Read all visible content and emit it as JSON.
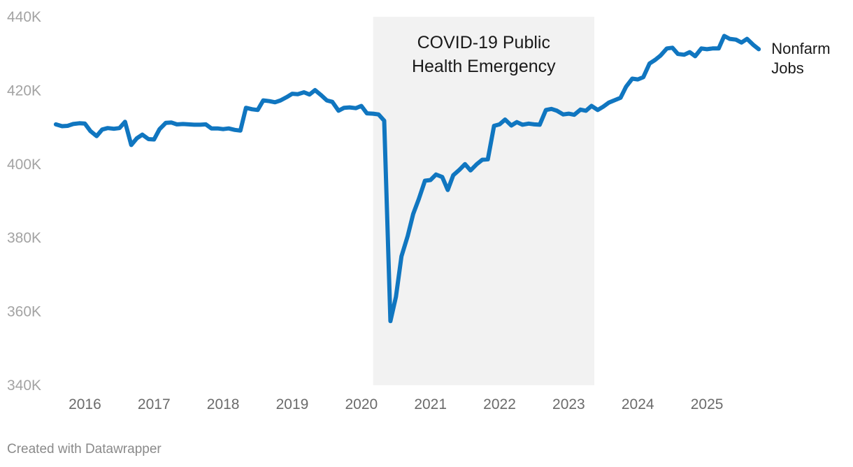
{
  "chart_data": {
    "type": "line",
    "title": "",
    "xlabel": "",
    "ylabel": "",
    "ylim": [
      340000,
      440000
    ],
    "xlim": [
      2015.5,
      2025.95
    ],
    "y_ticks": [
      {
        "value": 340000,
        "label": "340K"
      },
      {
        "value": 360000,
        "label": "360K"
      },
      {
        "value": 380000,
        "label": "380K"
      },
      {
        "value": 400000,
        "label": "400K"
      },
      {
        "value": 420000,
        "label": "420K"
      },
      {
        "value": 440000,
        "label": "440K"
      }
    ],
    "x_ticks": [
      {
        "value": 2016,
        "label": "2016"
      },
      {
        "value": 2017,
        "label": "2017"
      },
      {
        "value": 2018,
        "label": "2018"
      },
      {
        "value": 2019,
        "label": "2019"
      },
      {
        "value": 2020,
        "label": "2020"
      },
      {
        "value": 2021,
        "label": "2021"
      },
      {
        "value": 2022,
        "label": "2022"
      },
      {
        "value": 2023,
        "label": "2023"
      },
      {
        "value": 2024,
        "label": "2024"
      },
      {
        "value": 2025,
        "label": "2025"
      }
    ],
    "shaded_range": {
      "start": 2020.17,
      "end": 2023.37,
      "label_lines": [
        "COVID-19 Public",
        "Health Emergency"
      ]
    },
    "series": [
      {
        "name": "Nonfarm Jobs",
        "label_lines": [
          "Nonfarm",
          "Jobs"
        ],
        "color": "#1076c0",
        "points": [
          [
            2015.58,
            410800
          ],
          [
            2015.67,
            410300
          ],
          [
            2015.75,
            410400
          ],
          [
            2015.83,
            410900
          ],
          [
            2015.92,
            411100
          ],
          [
            2016.0,
            411000
          ],
          [
            2016.08,
            409000
          ],
          [
            2016.17,
            407600
          ],
          [
            2016.25,
            409400
          ],
          [
            2016.33,
            409800
          ],
          [
            2016.42,
            409600
          ],
          [
            2016.5,
            409800
          ],
          [
            2016.58,
            411500
          ],
          [
            2016.67,
            405200
          ],
          [
            2016.75,
            407000
          ],
          [
            2016.83,
            408000
          ],
          [
            2016.92,
            406800
          ],
          [
            2017.0,
            406700
          ],
          [
            2017.08,
            409500
          ],
          [
            2017.17,
            411200
          ],
          [
            2017.25,
            411300
          ],
          [
            2017.33,
            410800
          ],
          [
            2017.42,
            410900
          ],
          [
            2017.5,
            410800
          ],
          [
            2017.58,
            410700
          ],
          [
            2017.67,
            410700
          ],
          [
            2017.75,
            410800
          ],
          [
            2017.83,
            409700
          ],
          [
            2017.92,
            409700
          ],
          [
            2018.0,
            409500
          ],
          [
            2018.08,
            409700
          ],
          [
            2018.17,
            409300
          ],
          [
            2018.25,
            409100
          ],
          [
            2018.33,
            415300
          ],
          [
            2018.42,
            414900
          ],
          [
            2018.5,
            414700
          ],
          [
            2018.58,
            417300
          ],
          [
            2018.67,
            417100
          ],
          [
            2018.75,
            416800
          ],
          [
            2018.83,
            417300
          ],
          [
            2018.92,
            418200
          ],
          [
            2019.0,
            419100
          ],
          [
            2019.08,
            419000
          ],
          [
            2019.17,
            419500
          ],
          [
            2019.25,
            418900
          ],
          [
            2019.33,
            420100
          ],
          [
            2019.42,
            418700
          ],
          [
            2019.5,
            417300
          ],
          [
            2019.58,
            416900
          ],
          [
            2019.67,
            414500
          ],
          [
            2019.75,
            415300
          ],
          [
            2019.83,
            415400
          ],
          [
            2019.92,
            415200
          ],
          [
            2020.0,
            415800
          ],
          [
            2020.08,
            413800
          ],
          [
            2020.17,
            413700
          ],
          [
            2020.25,
            413500
          ],
          [
            2020.33,
            411800
          ],
          [
            2020.42,
            357400
          ],
          [
            2020.5,
            364000
          ],
          [
            2020.58,
            375000
          ],
          [
            2020.67,
            380500
          ],
          [
            2020.75,
            386500
          ],
          [
            2020.83,
            390500
          ],
          [
            2020.92,
            395500
          ],
          [
            2021.0,
            395700
          ],
          [
            2021.08,
            397200
          ],
          [
            2021.17,
            396500
          ],
          [
            2021.25,
            393000
          ],
          [
            2021.33,
            397000
          ],
          [
            2021.42,
            398500
          ],
          [
            2021.5,
            400000
          ],
          [
            2021.58,
            398300
          ],
          [
            2021.67,
            400000
          ],
          [
            2021.75,
            401200
          ],
          [
            2021.83,
            401300
          ],
          [
            2021.92,
            410400
          ],
          [
            2022.0,
            410800
          ],
          [
            2022.08,
            412100
          ],
          [
            2022.17,
            410500
          ],
          [
            2022.25,
            411400
          ],
          [
            2022.33,
            410700
          ],
          [
            2022.42,
            411000
          ],
          [
            2022.5,
            410800
          ],
          [
            2022.58,
            410700
          ],
          [
            2022.67,
            414700
          ],
          [
            2022.75,
            415000
          ],
          [
            2022.83,
            414500
          ],
          [
            2022.92,
            413500
          ],
          [
            2023.0,
            413700
          ],
          [
            2023.08,
            413400
          ],
          [
            2023.17,
            414800
          ],
          [
            2023.25,
            414500
          ],
          [
            2023.33,
            415800
          ],
          [
            2023.42,
            414700
          ],
          [
            2023.5,
            415600
          ],
          [
            2023.58,
            416700
          ],
          [
            2023.67,
            417400
          ],
          [
            2023.75,
            418000
          ],
          [
            2023.83,
            421000
          ],
          [
            2023.92,
            423200
          ],
          [
            2024.0,
            423000
          ],
          [
            2024.08,
            423600
          ],
          [
            2024.17,
            427300
          ],
          [
            2024.25,
            428300
          ],
          [
            2024.33,
            429500
          ],
          [
            2024.42,
            431400
          ],
          [
            2024.5,
            431600
          ],
          [
            2024.58,
            429900
          ],
          [
            2024.67,
            429700
          ],
          [
            2024.75,
            430400
          ],
          [
            2024.83,
            429300
          ],
          [
            2024.92,
            431400
          ],
          [
            2025.0,
            431200
          ],
          [
            2025.08,
            431400
          ],
          [
            2025.17,
            431400
          ],
          [
            2025.25,
            434800
          ],
          [
            2025.33,
            434000
          ],
          [
            2025.42,
            433800
          ],
          [
            2025.5,
            433000
          ],
          [
            2025.58,
            434000
          ],
          [
            2025.67,
            432400
          ],
          [
            2025.75,
            431200
          ]
        ]
      }
    ]
  },
  "footer": {
    "credit": "Created with Datawrapper"
  }
}
